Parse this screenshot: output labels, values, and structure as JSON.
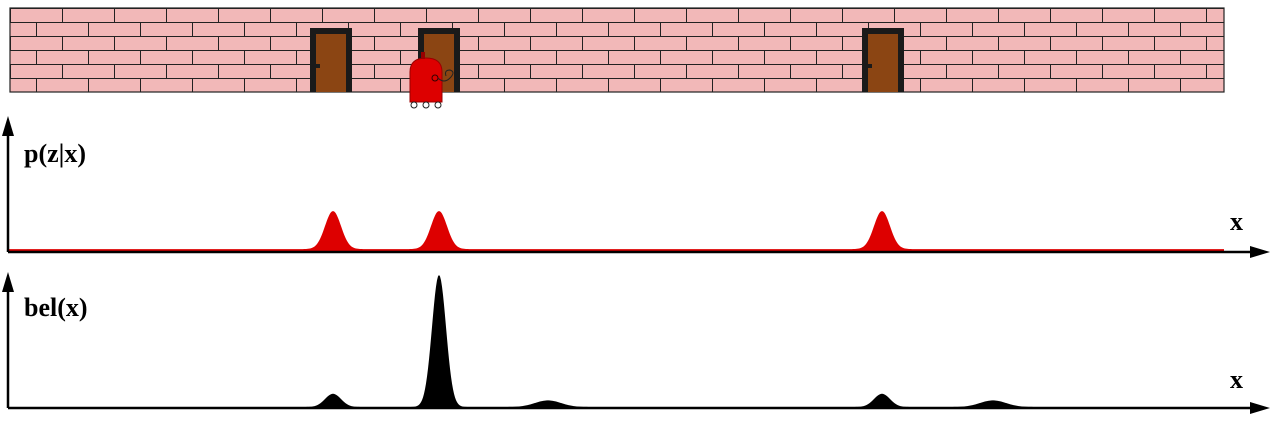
{
  "scene": {
    "wall_color": "#f2b8b8",
    "mortar_color": "#222222",
    "door_color": "#8b4513",
    "door_frame_color": "#1a1a1a",
    "robot_color": "#dd0000",
    "doors": [
      "door-1",
      "door-2",
      "door-3"
    ],
    "robot_position_x": 436
  },
  "measurement_plot": {
    "y_label": "p(z|x)",
    "x_label": "x",
    "color": "#dd0000",
    "baseline": 0.05,
    "peaks": [
      {
        "mu": 333,
        "sigma": 8,
        "amp": 1.0
      },
      {
        "mu": 439,
        "sigma": 8,
        "amp": 1.0
      },
      {
        "mu": 882,
        "sigma": 8,
        "amp": 1.0
      }
    ]
  },
  "belief_plot": {
    "y_label": "bel(x)",
    "x_label": "x",
    "color": "#000000",
    "baseline": 0.0,
    "peaks": [
      {
        "mu": 333,
        "sigma": 8,
        "amp": 0.1
      },
      {
        "mu": 439,
        "sigma": 7,
        "amp": 1.0
      },
      {
        "mu": 548,
        "sigma": 13,
        "amp": 0.05
      },
      {
        "mu": 882,
        "sigma": 8,
        "amp": 0.1
      },
      {
        "mu": 993,
        "sigma": 13,
        "amp": 0.05
      }
    ]
  }
}
